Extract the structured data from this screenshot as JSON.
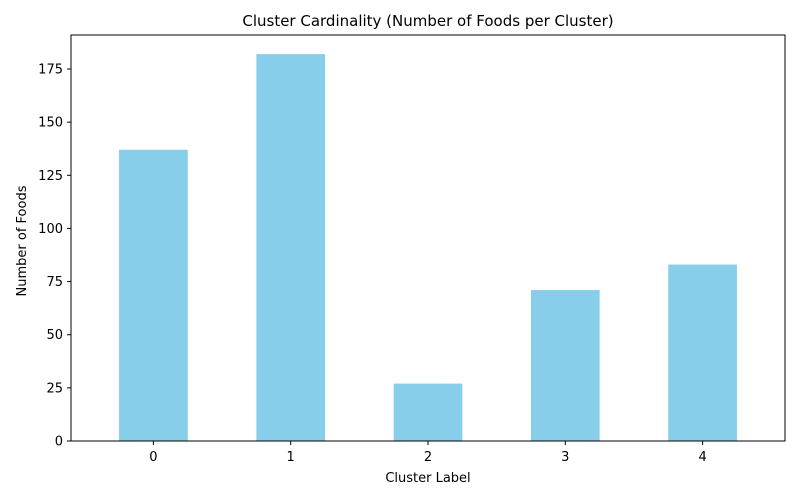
{
  "chart_data": {
    "type": "bar",
    "title": "Cluster Cardinality (Number of Foods per Cluster)",
    "xlabel": "Cluster Label",
    "ylabel": "Number of Foods",
    "categories": [
      "0",
      "1",
      "2",
      "3",
      "4"
    ],
    "values": [
      137,
      182,
      27,
      71,
      83
    ],
    "ylim": [
      0,
      191
    ],
    "yticks": [
      0,
      25,
      50,
      75,
      100,
      125,
      150,
      175
    ],
    "bar_color": "#87ceeb",
    "grid": false,
    "legend": "none"
  }
}
